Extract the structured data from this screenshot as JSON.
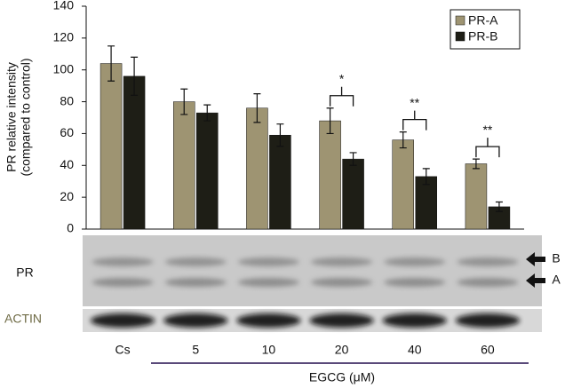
{
  "chart_data": {
    "type": "bar",
    "y_label": [
      "PR relative intensity",
      "(compared to control)"
    ],
    "categories": [
      "Cs",
      "5",
      "10",
      "20",
      "40",
      "60"
    ],
    "series": [
      {
        "name": "PR-A",
        "color": "#9e9472",
        "values": [
          104,
          80,
          76,
          68,
          56,
          41
        ],
        "errors": [
          11,
          8,
          9,
          8,
          5,
          3
        ]
      },
      {
        "name": "PR-B",
        "color": "#1e1e16",
        "values": [
          96,
          73,
          59,
          44,
          33,
          14
        ],
        "errors": [
          12,
          5,
          7,
          4,
          5,
          3
        ]
      }
    ],
    "significance": [
      null,
      null,
      null,
      "*",
      "**",
      "**"
    ],
    "ylim": [
      0,
      140
    ],
    "yticks": [
      0,
      20,
      40,
      60,
      80,
      100,
      120,
      140
    ],
    "legend": "top-right",
    "blot_labels": {
      "pr": "PR",
      "actin": "ACTIN",
      "band_b": "B",
      "band_a": "A"
    },
    "x_label": "EGCG (μM)"
  }
}
